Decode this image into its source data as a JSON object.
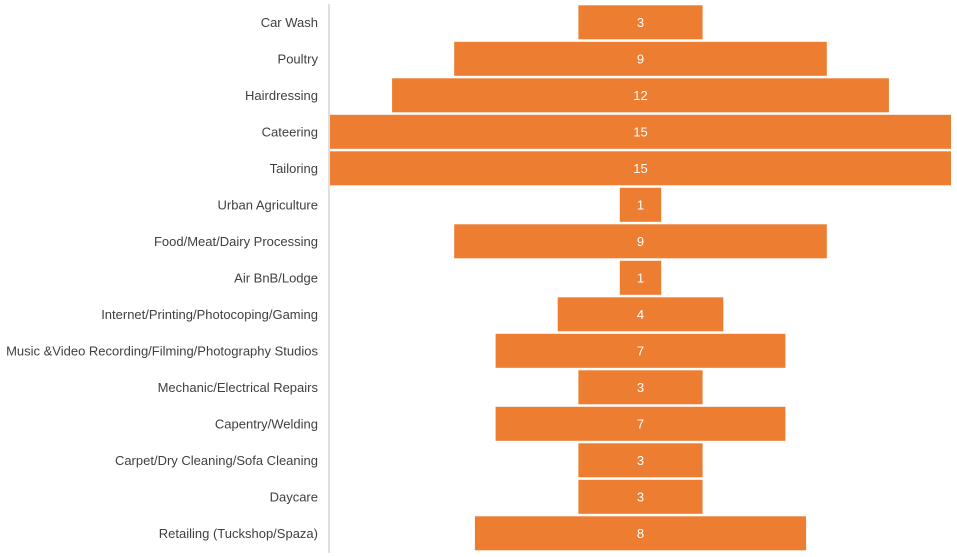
{
  "chart_data": {
    "type": "bar",
    "orientation": "horizontal",
    "layout": "centered-funnel",
    "categories": [
      "Car Wash",
      "Poultry",
      "Hairdressing",
      "Cateering",
      "Tailoring",
      "Urban Agriculture",
      "Food/Meat/Dairy Processing",
      "Air BnB/Lodge",
      "Internet/Printing/Photocoping/Gaming",
      "Music &Video Recording/Filming/Photography Studios",
      "Mechanic/Electrical Repairs",
      "Capentry/Welding",
      "Carpet/Dry Cleaning/Sofa Cleaning",
      "Daycare",
      "Retailing (Tuckshop/Spaza)"
    ],
    "values": [
      3,
      9,
      12,
      15,
      15,
      1,
      9,
      1,
      4,
      7,
      3,
      7,
      3,
      3,
      8
    ],
    "bar_color": "#ED7D31",
    "axis_color": "#BFBFBF",
    "label_color": "#404040",
    "value_label_color": "#FFFFFF",
    "xlim": [
      0,
      15
    ],
    "grid": false,
    "legend": "none"
  }
}
